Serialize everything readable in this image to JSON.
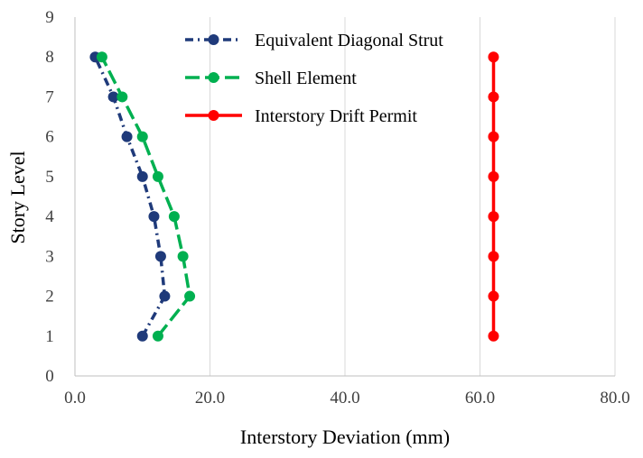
{
  "chart_data": {
    "type": "line",
    "title": "",
    "xlabel": "Interstory Deviation (mm)",
    "ylabel": "Story Level",
    "xlim": [
      0,
      80
    ],
    "ylim": [
      0,
      9
    ],
    "x_ticks": [
      "0.0",
      "20.0",
      "40.0",
      "60.0",
      "80.0"
    ],
    "y_ticks": [
      "0",
      "1",
      "2",
      "3",
      "4",
      "5",
      "6",
      "7",
      "8",
      "9"
    ],
    "grid": "vertical",
    "legend_position": "top-center",
    "series": [
      {
        "name": "Equivalent Diagonal Strut",
        "color": "#1f3a7a",
        "line_style": "dash-dot",
        "points": [
          {
            "x": 10.0,
            "y": 1
          },
          {
            "x": 13.3,
            "y": 2
          },
          {
            "x": 12.7,
            "y": 3
          },
          {
            "x": 11.7,
            "y": 4
          },
          {
            "x": 10.0,
            "y": 5
          },
          {
            "x": 7.7,
            "y": 6
          },
          {
            "x": 5.7,
            "y": 7
          },
          {
            "x": 3.0,
            "y": 8
          }
        ]
      },
      {
        "name": "Shell Element",
        "color": "#00b050",
        "line_style": "long-dash",
        "points": [
          {
            "x": 12.3,
            "y": 1
          },
          {
            "x": 17.0,
            "y": 2
          },
          {
            "x": 16.0,
            "y": 3
          },
          {
            "x": 14.7,
            "y": 4
          },
          {
            "x": 12.3,
            "y": 5
          },
          {
            "x": 10.0,
            "y": 6
          },
          {
            "x": 7.0,
            "y": 7
          },
          {
            "x": 4.0,
            "y": 8
          }
        ]
      },
      {
        "name": "Interstory Drift Permit",
        "color": "#ff0000",
        "line_style": "solid",
        "points": [
          {
            "x": 62,
            "y": 1
          },
          {
            "x": 62,
            "y": 2
          },
          {
            "x": 62,
            "y": 3
          },
          {
            "x": 62,
            "y": 4
          },
          {
            "x": 62,
            "y": 5
          },
          {
            "x": 62,
            "y": 6
          },
          {
            "x": 62,
            "y": 7
          },
          {
            "x": 62,
            "y": 8
          }
        ]
      }
    ]
  }
}
